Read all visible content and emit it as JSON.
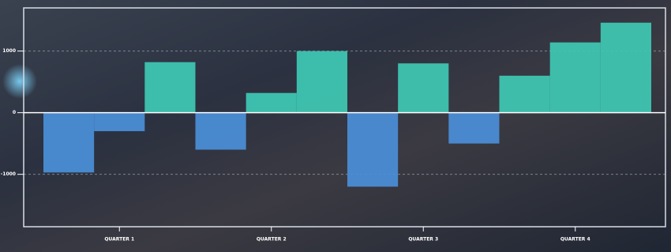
{
  "chart_data": {
    "type": "bar",
    "categories": [
      null,
      "QUARTER 1",
      null,
      null,
      "QUARTER 2",
      null,
      null,
      "QUARTER 3",
      null,
      null,
      "QUARTER 4",
      null
    ],
    "values": [
      -970,
      -300,
      820,
      -600,
      320,
      1000,
      -1200,
      800,
      -500,
      600,
      1140,
      1460
    ],
    "positive_color": "#3fc9b4",
    "negative_color": "#4b8fd8",
    "ylim": [
      -1850,
      1700
    ],
    "yticks": [
      -1000,
      0,
      1000
    ],
    "grid": true
  }
}
